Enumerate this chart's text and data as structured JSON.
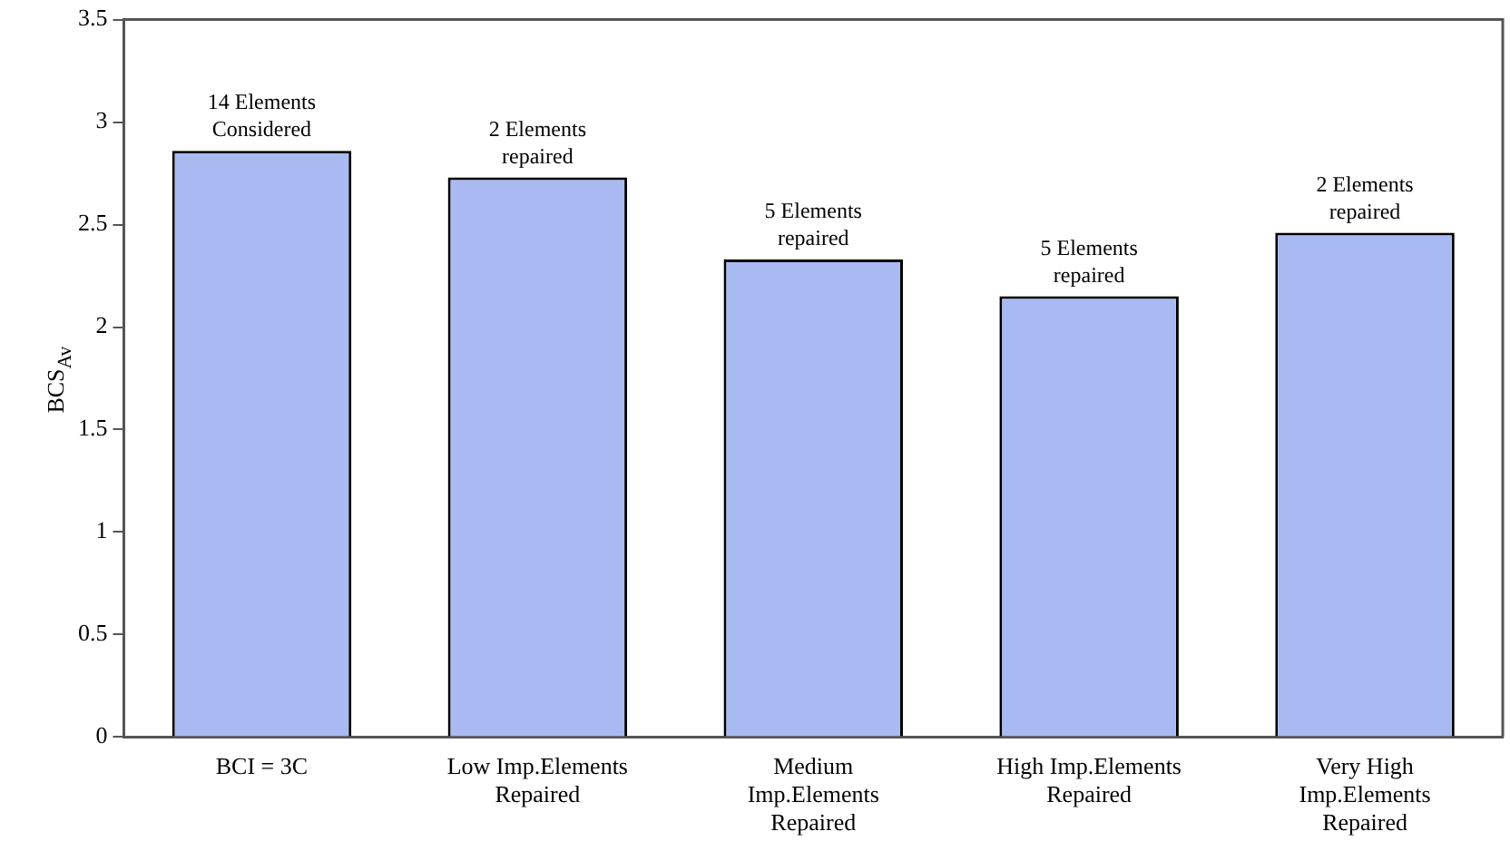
{
  "chart_data": {
    "type": "bar",
    "ylabel": "BCS$_{Av}$",
    "categories": [
      "BCI = 3C",
      "Low Imp.Elements\nRepaired",
      "Medium\nImp.Elements\nRepaired",
      "High Imp.Elements\nRepaired",
      "Very High\nImp.Elements\nRepaired"
    ],
    "values": [
      2.86,
      2.73,
      2.33,
      2.15,
      2.46
    ],
    "color": "#a9b9f2",
    "ylim": [
      0,
      3.5
    ],
    "yticks": [
      0,
      0.5,
      1,
      1.5,
      2,
      2.5,
      3,
      3.5
    ],
    "grid": false,
    "legend": false,
    "annotations": [
      {
        "text": "14 Elements\nConsidered",
        "x": "BCI = 3C",
        "y": 2.86
      },
      {
        "text": "2 Elements\nrepaired",
        "x": "Low Imp.Elements\nRepaired",
        "y": 2.73
      },
      {
        "text": "5 Elements\nrepaired",
        "x": "Medium\nImp.Elements\nRepaired",
        "y": 2.33
      },
      {
        "text": "5 Elements\nrepaired",
        "x": "High Imp.Elements\nRepaired",
        "y": 2.15
      },
      {
        "text": "2 Elements\nrepaired",
        "x": "Very High\nImp.Elements\nRepaired",
        "y": 2.46
      }
    ]
  }
}
